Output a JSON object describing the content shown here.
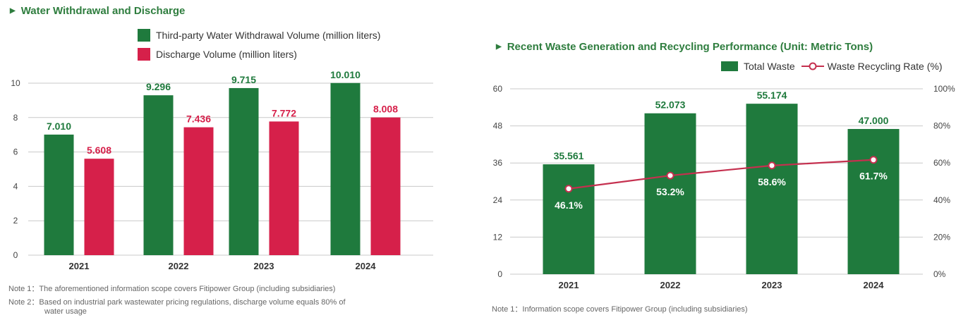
{
  "colors": {
    "green": "#1f7a3d",
    "red": "#d6204a",
    "heading": "#2e7d3e",
    "grid": "#c9c9c9",
    "line": "#c5304f"
  },
  "left": {
    "heading": "Water Withdrawal and Discharge",
    "notes": [
      "Note 1：The aforementioned information scope covers Fitipower Group (including subsidiaries)",
      "Note 2：Based on industrial park wastewater pricing regulations, discharge volume equals 80% of",
      "water usage"
    ]
  },
  "right": {
    "heading": "Recent Waste Generation and Recycling Performance (Unit: Metric Tons)",
    "notes": [
      "Note 1：Information scope covers Fitipower Group (including subsidiaries)"
    ]
  },
  "chart_data": [
    {
      "type": "bar",
      "title": "Water Withdrawal and Discharge",
      "categories": [
        "2021",
        "2022",
        "2023",
        "2024"
      ],
      "series": [
        {
          "name": "Third-party Water Withdrawal Volume (million liters)",
          "values": [
            7.01,
            9.296,
            9.715,
            10.01
          ],
          "labels": [
            "7.010",
            "9.296",
            "9.715",
            "10.010"
          ],
          "color": "#1f7a3d"
        },
        {
          "name": "Discharge Volume (million liters)",
          "values": [
            5.608,
            7.436,
            7.772,
            8.008
          ],
          "labels": [
            "5.608",
            "7.436",
            "7.772",
            "8.008"
          ],
          "color": "#d6204a"
        }
      ],
      "ylim": [
        0,
        10
      ],
      "yticks": [
        0,
        2,
        4,
        6,
        8,
        10
      ],
      "ytick_labels": [
        "0",
        "2",
        "4",
        "6",
        "8",
        "10"
      ],
      "grid": true,
      "legend": "top"
    },
    {
      "type": "bar",
      "title": "Recent Waste Generation and Recycling Performance (Unit: Metric Tons)",
      "categories": [
        "2021",
        "2022",
        "2023",
        "2024"
      ],
      "series": [
        {
          "name": "Total Waste",
          "kind": "bar",
          "axis": "left",
          "values": [
            35.561,
            52.073,
            55.174,
            47.0
          ],
          "labels": [
            "35.561",
            "52.073",
            "55.174",
            "47.000"
          ],
          "color": "#1f7a3d"
        },
        {
          "name": "Waste Recycling Rate (%)",
          "kind": "line",
          "axis": "right",
          "values": [
            46.1,
            53.2,
            58.6,
            61.7
          ],
          "labels": [
            "46.1%",
            "53.2%",
            "58.6%",
            "61.7%"
          ],
          "color": "#c5304f"
        }
      ],
      "ylim": [
        0,
        60
      ],
      "yticks": [
        0,
        12,
        24,
        36,
        48,
        60
      ],
      "ytick_labels": [
        "0",
        "12",
        "24",
        "36",
        "48",
        "60"
      ],
      "y2lim": [
        0,
        100
      ],
      "y2ticks": [
        0,
        20,
        40,
        60,
        80,
        100
      ],
      "y2tick_labels": [
        "0%",
        "20%",
        "40%",
        "60%",
        "80%",
        "100%"
      ],
      "grid": true,
      "legend": "top-right"
    }
  ]
}
